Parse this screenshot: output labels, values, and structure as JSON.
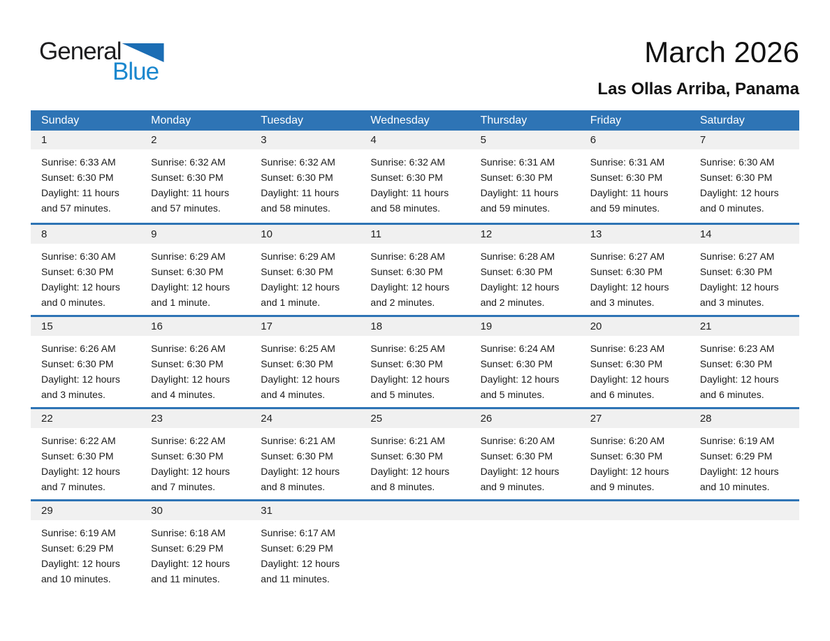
{
  "logo": {
    "general": "General",
    "blue": "Blue"
  },
  "header": {
    "title": "March 2026",
    "subtitle": "Las Ollas Arriba, Panama"
  },
  "weekdays": [
    "Sunday",
    "Monday",
    "Tuesday",
    "Wednesday",
    "Thursday",
    "Friday",
    "Saturday"
  ],
  "weeks": [
    [
      {
        "day": "1",
        "sunrise": "Sunrise: 6:33 AM",
        "sunset": "Sunset: 6:30 PM",
        "daylight": "Daylight: 11 hours and 57 minutes."
      },
      {
        "day": "2",
        "sunrise": "Sunrise: 6:32 AM",
        "sunset": "Sunset: 6:30 PM",
        "daylight": "Daylight: 11 hours and 57 minutes."
      },
      {
        "day": "3",
        "sunrise": "Sunrise: 6:32 AM",
        "sunset": "Sunset: 6:30 PM",
        "daylight": "Daylight: 11 hours and 58 minutes."
      },
      {
        "day": "4",
        "sunrise": "Sunrise: 6:32 AM",
        "sunset": "Sunset: 6:30 PM",
        "daylight": "Daylight: 11 hours and 58 minutes."
      },
      {
        "day": "5",
        "sunrise": "Sunrise: 6:31 AM",
        "sunset": "Sunset: 6:30 PM",
        "daylight": "Daylight: 11 hours and 59 minutes."
      },
      {
        "day": "6",
        "sunrise": "Sunrise: 6:31 AM",
        "sunset": "Sunset: 6:30 PM",
        "daylight": "Daylight: 11 hours and 59 minutes."
      },
      {
        "day": "7",
        "sunrise": "Sunrise: 6:30 AM",
        "sunset": "Sunset: 6:30 PM",
        "daylight": "Daylight: 12 hours and 0 minutes."
      }
    ],
    [
      {
        "day": "8",
        "sunrise": "Sunrise: 6:30 AM",
        "sunset": "Sunset: 6:30 PM",
        "daylight": "Daylight: 12 hours and 0 minutes."
      },
      {
        "day": "9",
        "sunrise": "Sunrise: 6:29 AM",
        "sunset": "Sunset: 6:30 PM",
        "daylight": "Daylight: 12 hours and 1 minute."
      },
      {
        "day": "10",
        "sunrise": "Sunrise: 6:29 AM",
        "sunset": "Sunset: 6:30 PM",
        "daylight": "Daylight: 12 hours and 1 minute."
      },
      {
        "day": "11",
        "sunrise": "Sunrise: 6:28 AM",
        "sunset": "Sunset: 6:30 PM",
        "daylight": "Daylight: 12 hours and 2 minutes."
      },
      {
        "day": "12",
        "sunrise": "Sunrise: 6:28 AM",
        "sunset": "Sunset: 6:30 PM",
        "daylight": "Daylight: 12 hours and 2 minutes."
      },
      {
        "day": "13",
        "sunrise": "Sunrise: 6:27 AM",
        "sunset": "Sunset: 6:30 PM",
        "daylight": "Daylight: 12 hours and 3 minutes."
      },
      {
        "day": "14",
        "sunrise": "Sunrise: 6:27 AM",
        "sunset": "Sunset: 6:30 PM",
        "daylight": "Daylight: 12 hours and 3 minutes."
      }
    ],
    [
      {
        "day": "15",
        "sunrise": "Sunrise: 6:26 AM",
        "sunset": "Sunset: 6:30 PM",
        "daylight": "Daylight: 12 hours and 3 minutes."
      },
      {
        "day": "16",
        "sunrise": "Sunrise: 6:26 AM",
        "sunset": "Sunset: 6:30 PM",
        "daylight": "Daylight: 12 hours and 4 minutes."
      },
      {
        "day": "17",
        "sunrise": "Sunrise: 6:25 AM",
        "sunset": "Sunset: 6:30 PM",
        "daylight": "Daylight: 12 hours and 4 minutes."
      },
      {
        "day": "18",
        "sunrise": "Sunrise: 6:25 AM",
        "sunset": "Sunset: 6:30 PM",
        "daylight": "Daylight: 12 hours and 5 minutes."
      },
      {
        "day": "19",
        "sunrise": "Sunrise: 6:24 AM",
        "sunset": "Sunset: 6:30 PM",
        "daylight": "Daylight: 12 hours and 5 minutes."
      },
      {
        "day": "20",
        "sunrise": "Sunrise: 6:23 AM",
        "sunset": "Sunset: 6:30 PM",
        "daylight": "Daylight: 12 hours and 6 minutes."
      },
      {
        "day": "21",
        "sunrise": "Sunrise: 6:23 AM",
        "sunset": "Sunset: 6:30 PM",
        "daylight": "Daylight: 12 hours and 6 minutes."
      }
    ],
    [
      {
        "day": "22",
        "sunrise": "Sunrise: 6:22 AM",
        "sunset": "Sunset: 6:30 PM",
        "daylight": "Daylight: 12 hours and 7 minutes."
      },
      {
        "day": "23",
        "sunrise": "Sunrise: 6:22 AM",
        "sunset": "Sunset: 6:30 PM",
        "daylight": "Daylight: 12 hours and 7 minutes."
      },
      {
        "day": "24",
        "sunrise": "Sunrise: 6:21 AM",
        "sunset": "Sunset: 6:30 PM",
        "daylight": "Daylight: 12 hours and 8 minutes."
      },
      {
        "day": "25",
        "sunrise": "Sunrise: 6:21 AM",
        "sunset": "Sunset: 6:30 PM",
        "daylight": "Daylight: 12 hours and 8 minutes."
      },
      {
        "day": "26",
        "sunrise": "Sunrise: 6:20 AM",
        "sunset": "Sunset: 6:30 PM",
        "daylight": "Daylight: 12 hours and 9 minutes."
      },
      {
        "day": "27",
        "sunrise": "Sunrise: 6:20 AM",
        "sunset": "Sunset: 6:30 PM",
        "daylight": "Daylight: 12 hours and 9 minutes."
      },
      {
        "day": "28",
        "sunrise": "Sunrise: 6:19 AM",
        "sunset": "Sunset: 6:29 PM",
        "daylight": "Daylight: 12 hours and 10 minutes."
      }
    ],
    [
      {
        "day": "29",
        "sunrise": "Sunrise: 6:19 AM",
        "sunset": "Sunset: 6:29 PM",
        "daylight": "Daylight: 12 hours and 10 minutes."
      },
      {
        "day": "30",
        "sunrise": "Sunrise: 6:18 AM",
        "sunset": "Sunset: 6:29 PM",
        "daylight": "Daylight: 12 hours and 11 minutes."
      },
      {
        "day": "31",
        "sunrise": "Sunrise: 6:17 AM",
        "sunset": "Sunset: 6:29 PM",
        "daylight": "Daylight: 12 hours and 11 minutes."
      },
      null,
      null,
      null,
      null
    ]
  ],
  "colors": {
    "header_blue": "#2e74b5",
    "week_divider_blue": "#2e74b5",
    "date_band_gray": "#f0f0f0",
    "logo_triangle_blue": "#1b6db4",
    "logo_text_blue": "#1a87ce",
    "logo_text_black": "#1d1d1f",
    "weekday_text": "#ffffff",
    "body_text": "#1b1b1b"
  }
}
